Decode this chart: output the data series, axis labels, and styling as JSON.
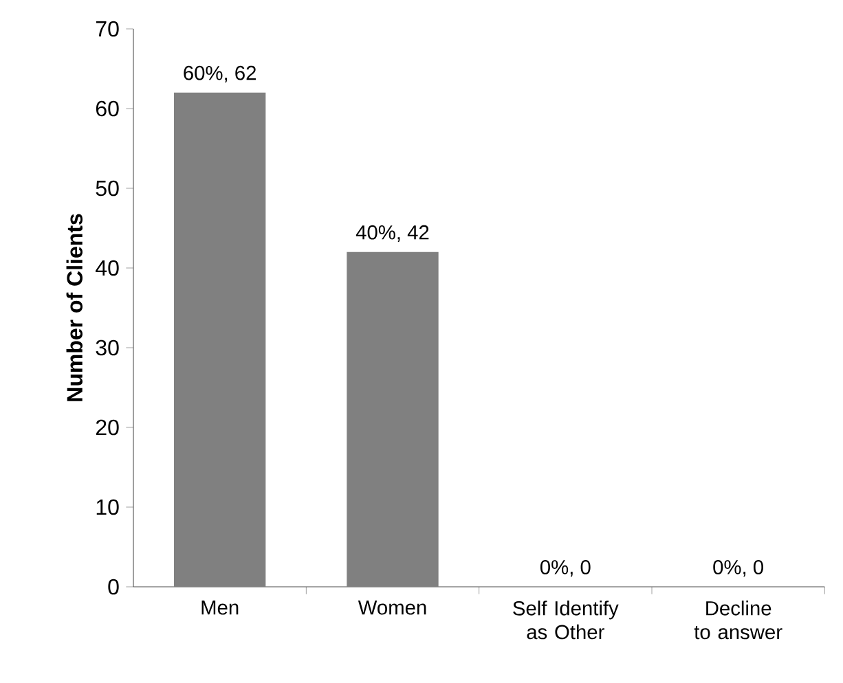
{
  "chart_data": {
    "type": "bar",
    "ylabel": "Number of Clients",
    "categories": [
      "Men",
      "Women",
      "Self Identify as Other",
      "Decline to answer"
    ],
    "values": [
      62,
      42,
      0,
      0
    ],
    "color": "#808080",
    "value_labels": [
      "60%, 62",
      "40%, 42",
      "0%, 0",
      "0%, 0"
    ],
    "ylim": [
      0,
      70
    ],
    "yticks": [
      0,
      10,
      20,
      30,
      40,
      50,
      60,
      70
    ]
  }
}
